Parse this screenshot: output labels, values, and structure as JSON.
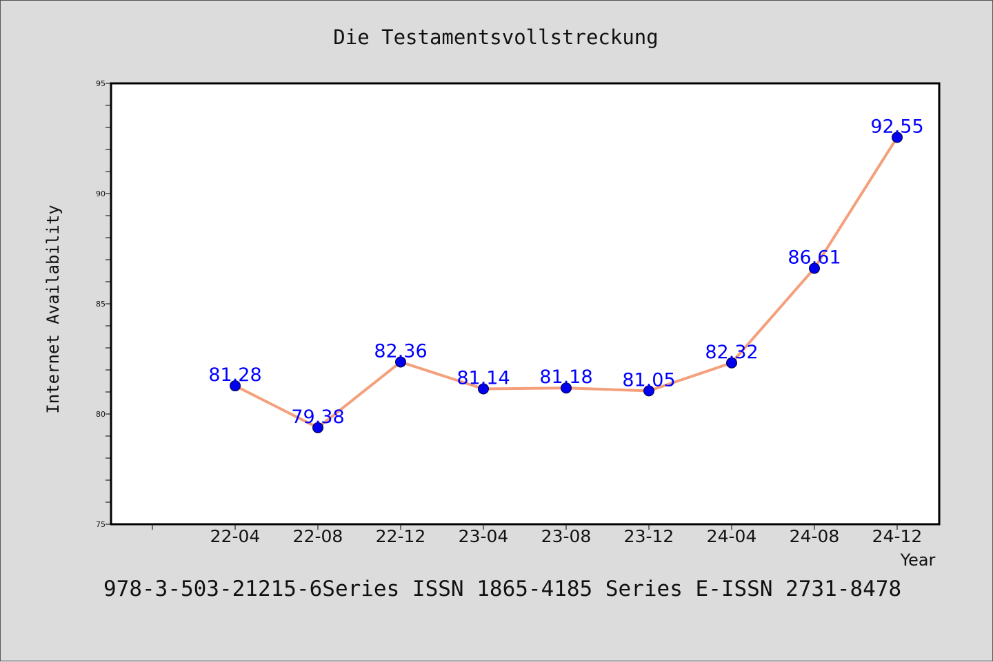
{
  "chart_data": {
    "type": "line",
    "title": "Die Testamentsvollstreckung",
    "xlabel": "Year",
    "ylabel": "Internet Availability",
    "categories": [
      "22-04",
      "22-08",
      "22-12",
      "23-04",
      "23-08",
      "23-12",
      "24-04",
      "24-08",
      "24-12"
    ],
    "series": [
      {
        "values": [
          81.28,
          79.38,
          82.36,
          81.14,
          81.18,
          81.05,
          82.32,
          86.61,
          92.55
        ],
        "labels": [
          "81.28",
          "79.38",
          "82.36",
          "81.14",
          "81.18",
          "81.05",
          "82.32",
          "86.61",
          "92.55"
        ],
        "line_color": "#f4a07c",
        "marker_color": "#0000ee",
        "label_color": "#0000ff"
      }
    ],
    "ylim": [
      75,
      95
    ],
    "yticks": [
      "75",
      "80",
      "85",
      "90",
      "95"
    ],
    "grid": false,
    "legend": "none"
  },
  "footer": {
    "text": "978-3-503-21215-6Series ISSN 1865-4185 Series E-ISSN 2731-8478"
  },
  "colors": {
    "background": "#dcdcdc",
    "plot_background": "#ffffff"
  }
}
